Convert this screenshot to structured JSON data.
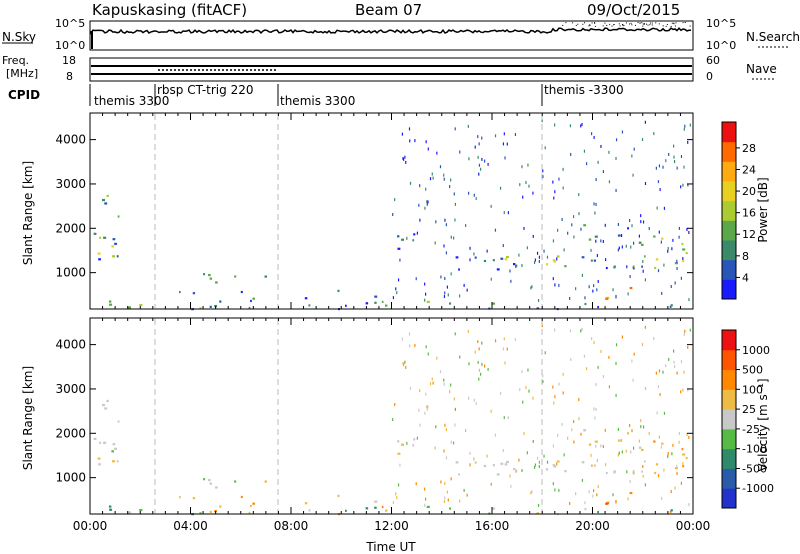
{
  "header": {
    "station": "Kapuskasing (fitACF)",
    "beam": "Beam 07",
    "date": "09/Oct/2015"
  },
  "summary": {
    "nsky_label": "N.Sky",
    "nsky_ticks": [
      "10^5",
      "10^0"
    ],
    "nsearch_label": "N.Search",
    "nsearch_ticks": [
      "10^5",
      "10^0"
    ],
    "freq_label_line1": "Freq.",
    "freq_label_line2": "[MHz]",
    "freq_ticks": [
      "18",
      "8"
    ],
    "nave_label": "Nave",
    "nave_ticks": [
      "60",
      "0"
    ],
    "cpid_label": "CPID"
  },
  "cpid_segments": [
    {
      "label": "themis 3300",
      "start_hour": 0.0
    },
    {
      "label": "rbsp CT-trig 220",
      "start_hour": 2.45
    },
    {
      "label": "themis 3300",
      "start_hour": 7.5
    },
    {
      "label": "themis -3300",
      "start_hour": 18.0
    }
  ],
  "chart_data": [
    {
      "type": "heatmap",
      "name": "power",
      "ylabel": "Slant Range [km]",
      "xlabel": "Time UT",
      "xlim": [
        0,
        24
      ],
      "ylim": [
        180,
        4600
      ],
      "yticks": [
        "1000",
        "2000",
        "3000",
        "4000"
      ],
      "xticks": [
        "00:00",
        "04:00",
        "08:00",
        "12:00",
        "16:00",
        "20:00",
        "00:00"
      ],
      "colorbar": {
        "label": "Power [dB]",
        "ticks": [
          "4",
          "8",
          "12",
          "16",
          "20",
          "24",
          "28"
        ],
        "colors": [
          "#1a1aff",
          "#2a55b8",
          "#3a8a6a",
          "#5aa84a",
          "#aacc30",
          "#e8d020",
          "#ffaa10",
          "#ff6a00",
          "#ee1010"
        ]
      }
    },
    {
      "type": "heatmap",
      "name": "velocity",
      "ylabel": "Slant Range [km]",
      "xlabel": "Time UT",
      "xlim": [
        0,
        24
      ],
      "ylim": [
        180,
        4600
      ],
      "yticks": [
        "1000",
        "2000",
        "3000",
        "4000"
      ],
      "xticks": [
        "00:00",
        "04:00",
        "08:00",
        "12:00",
        "16:00",
        "20:00",
        "00:00"
      ],
      "colorbar": {
        "label": "Velocity [m s⁻¹]",
        "ticks": [
          "1000",
          "500",
          "100",
          "25",
          "-25",
          "-100",
          "-500",
          "-1000"
        ],
        "colors": [
          "#2233cc",
          "#2a5aaa",
          "#2e8a6a",
          "#55bb44",
          "#c8c8c8",
          "#eebb44",
          "#ff8800",
          "#ff5500",
          "#ee1111"
        ]
      }
    }
  ]
}
